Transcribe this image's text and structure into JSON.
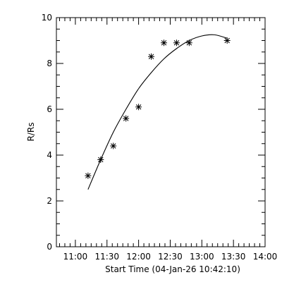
{
  "chart_data": {
    "type": "scatter",
    "title": "",
    "xlabel": "Start Time (04-Jan-26 10:42:10)",
    "ylabel": "R/Rs",
    "xlim": [
      "10:42",
      "14:00"
    ],
    "ylim": [
      0,
      10
    ],
    "grid": false,
    "x_ticks": [
      "11:00",
      "11:30",
      "12:00",
      "12:30",
      "13:00",
      "13:30",
      "14:00"
    ],
    "y_ticks": [
      "0",
      "2",
      "4",
      "6",
      "8",
      "10"
    ],
    "series": [
      {
        "marker": "asterisk",
        "x": [
          "11:12",
          "11:24",
          "11:36",
          "11:48",
          "12:00",
          "12:12",
          "12:24",
          "12:36",
          "12:48",
          "13:24"
        ],
        "y": [
          3.1,
          3.8,
          4.4,
          5.6,
          6.1,
          8.3,
          8.9,
          8.9,
          8.9,
          9.0
        ]
      }
    ],
    "fit_curve": {
      "style": "solid-line",
      "x": [
        "11:12",
        "11:24",
        "11:36",
        "11:48",
        "12:00",
        "12:12",
        "12:24",
        "12:36",
        "12:48",
        "13:00",
        "13:12",
        "13:24"
      ],
      "y": [
        2.5,
        3.8,
        5.0,
        6.0,
        6.9,
        7.6,
        8.2,
        8.65,
        9.0,
        9.2,
        9.25,
        9.1
      ]
    }
  }
}
